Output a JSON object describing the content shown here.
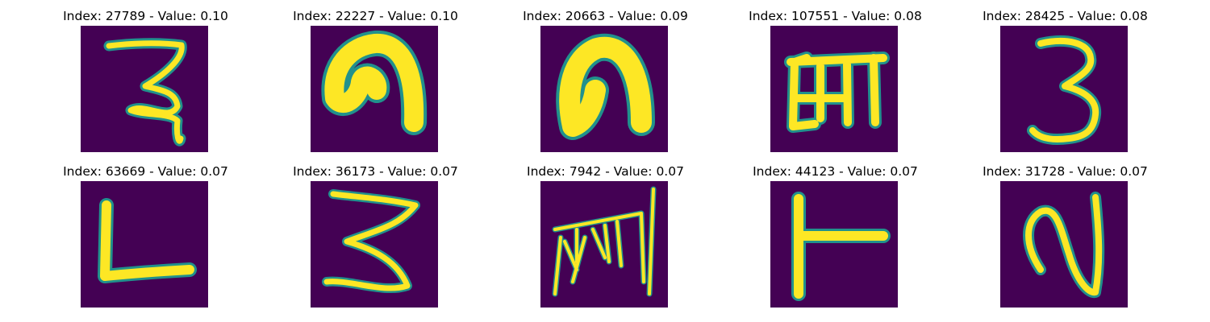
{
  "panels": [
    {
      "title": "Index: 27789 - Value: 0.10",
      "glyph": "handwritten-glyph-27789"
    },
    {
      "title": "Index: 22227 - Value: 0.10",
      "glyph": "handwritten-glyph-22227"
    },
    {
      "title": "Index: 20663 - Value: 0.09",
      "glyph": "handwritten-glyph-20663"
    },
    {
      "title": "Index: 107551 - Value: 0.08",
      "glyph": "handwritten-glyph-107551"
    },
    {
      "title": "Index: 28425 - Value: 0.08",
      "glyph": "handwritten-glyph-28425"
    },
    {
      "title": "Index: 63669 - Value: 0.07",
      "glyph": "handwritten-glyph-63669"
    },
    {
      "title": "Index: 36173 - Value: 0.07",
      "glyph": "handwritten-glyph-36173"
    },
    {
      "title": "Index: 7942 - Value: 0.07",
      "glyph": "handwritten-glyph-7942"
    },
    {
      "title": "Index: 44123 - Value: 0.07",
      "glyph": "handwritten-glyph-44123"
    },
    {
      "title": "Index: 31728 - Value: 0.07",
      "glyph": "handwritten-glyph-31728"
    }
  ],
  "colors": {
    "background": "#440154",
    "stroke": "#fde725",
    "edge": "#21918c"
  }
}
